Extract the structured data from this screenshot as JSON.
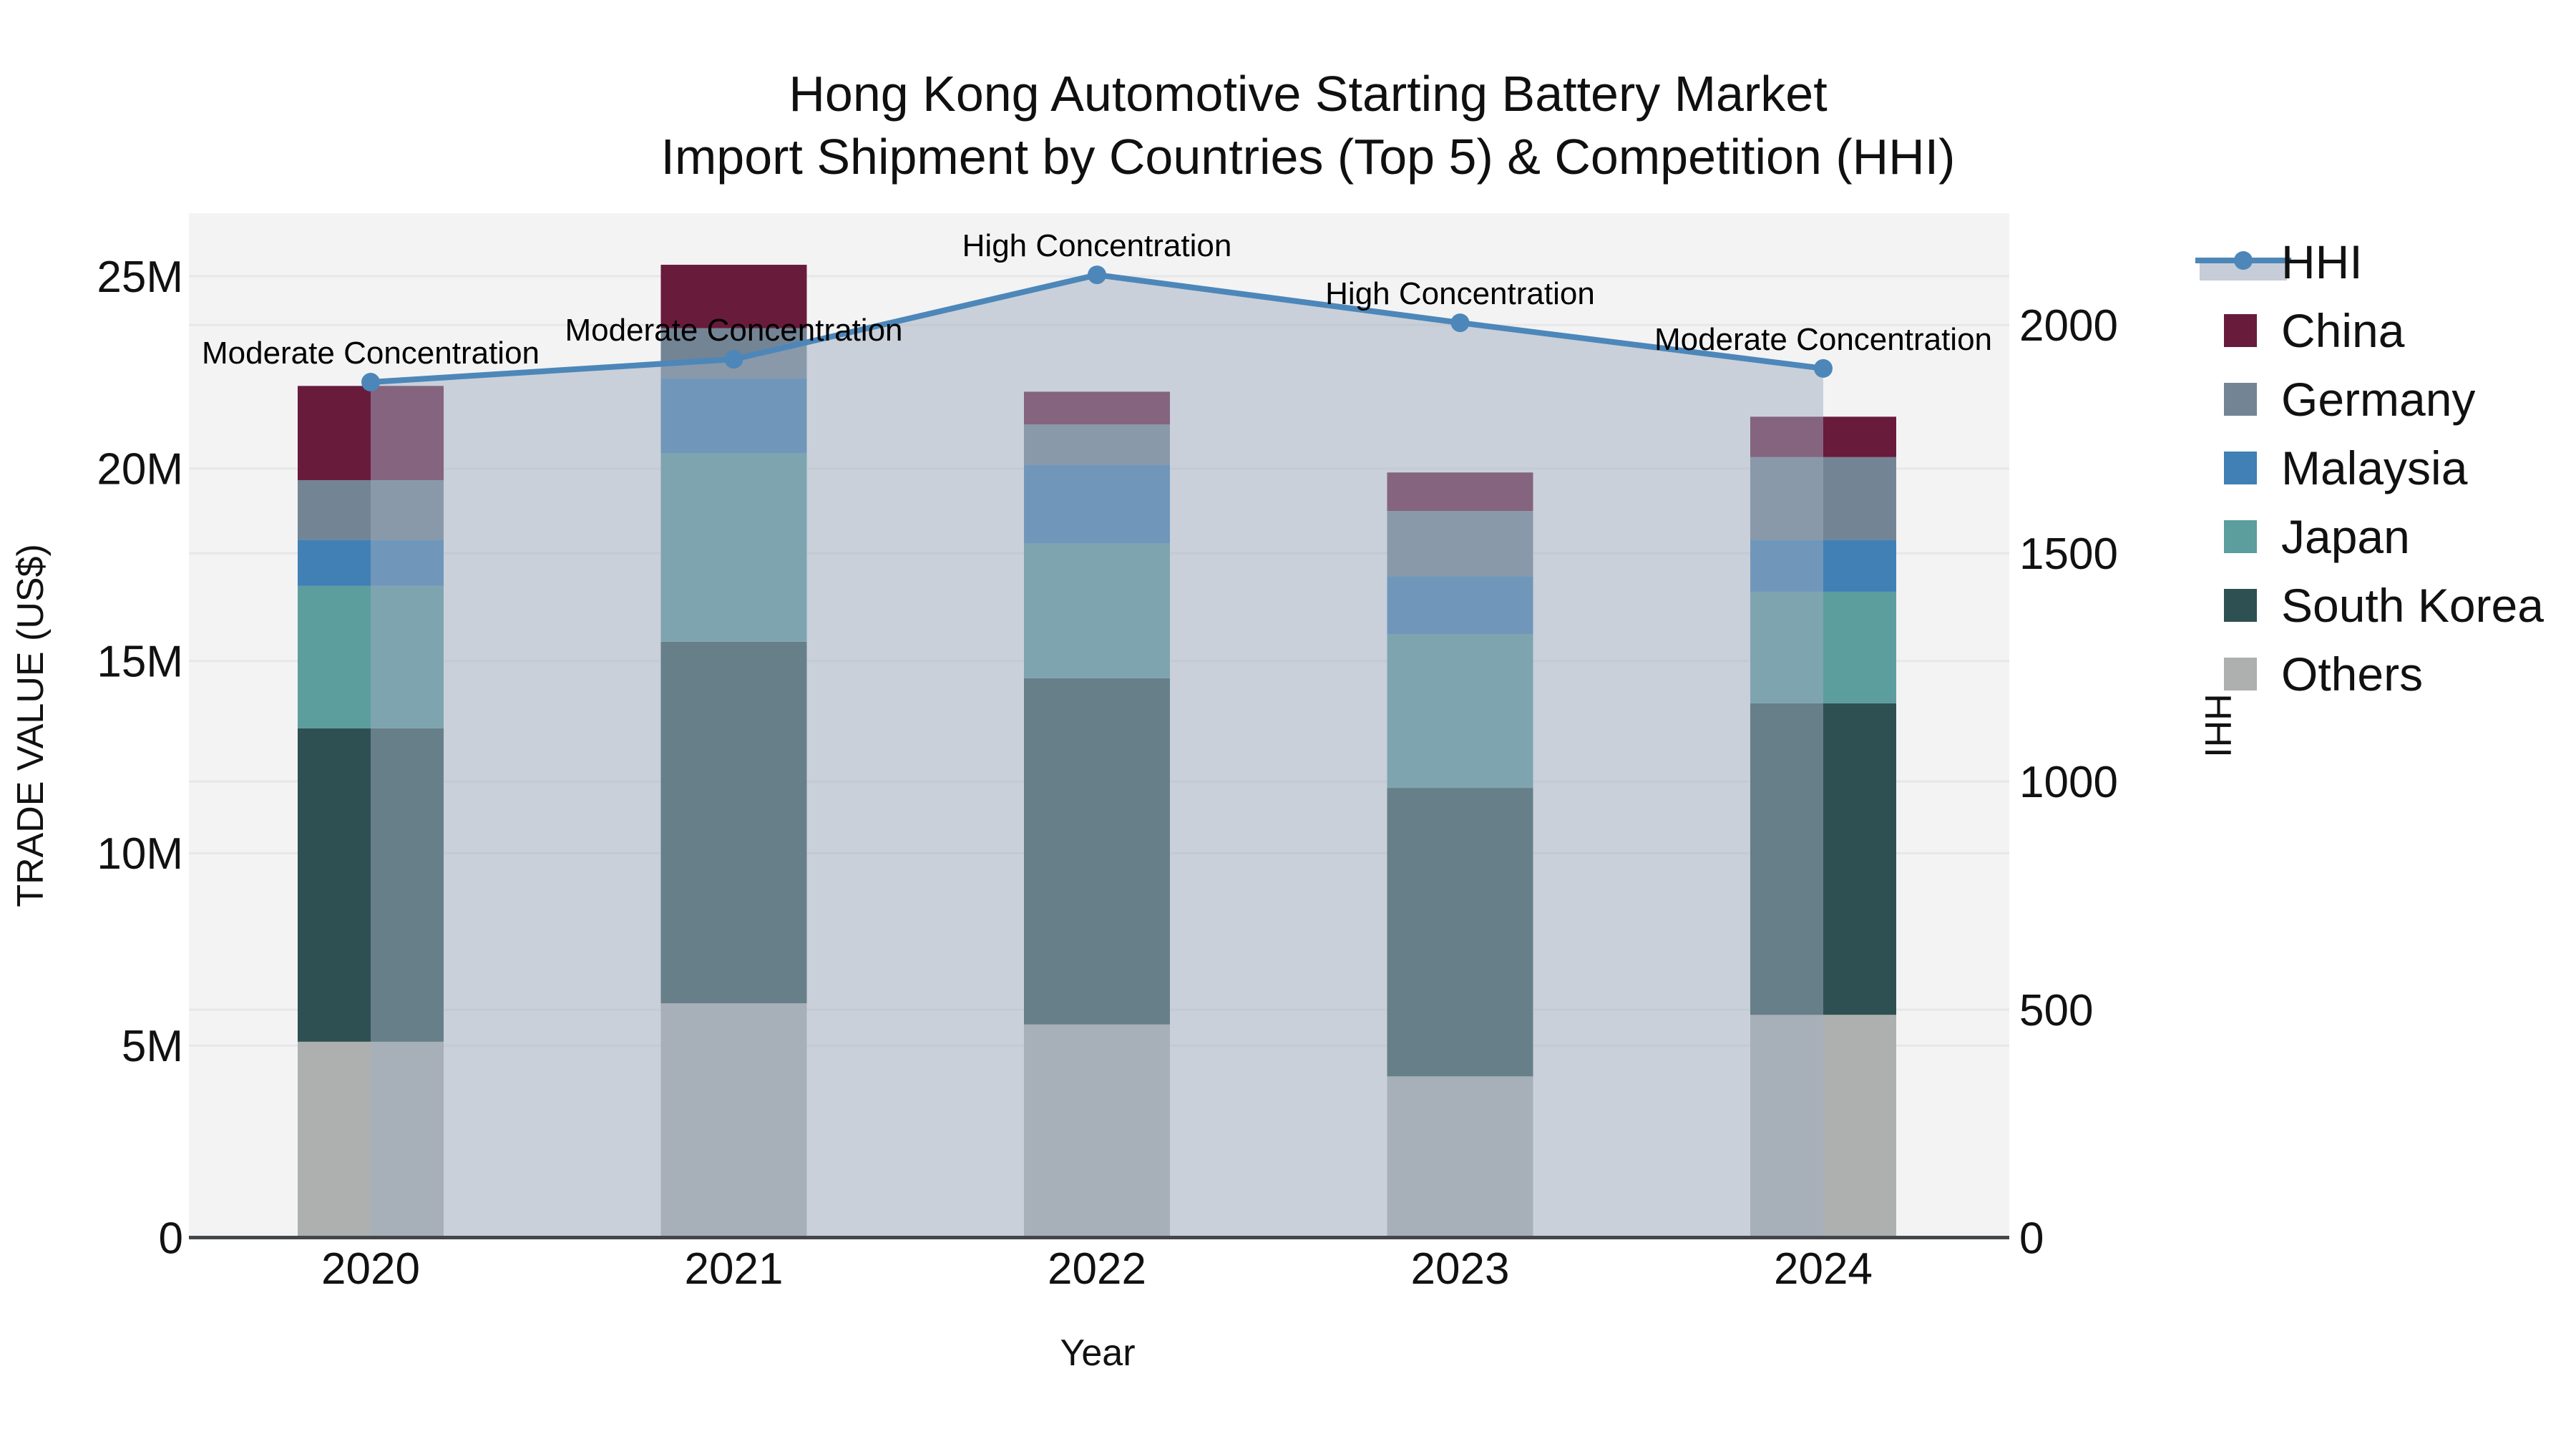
{
  "title": {
    "line1": "Hong Kong Automotive Starting Battery Market",
    "line2": "Import Shipment by Countries (Top 5) & Competition (HHI)"
  },
  "chart_data": {
    "type": "bar+line",
    "title": "Hong Kong Automotive Starting Battery Market Import Shipment by Countries (Top 5) & Competition (HHI)",
    "xlabel": "Year",
    "ylabel": "TRADE VALUE (US$)",
    "y2label": "HHI",
    "units": "millions of US$",
    "categories": [
      "2020",
      "2021",
      "2022",
      "2023",
      "2024"
    ],
    "stack_note": "series listed bottom-to-top as stacked",
    "series": [
      {
        "name": "Others",
        "color": "#aeb0b0",
        "values": [
          5.1,
          6.1,
          5.55,
          4.2,
          5.8
        ]
      },
      {
        "name": "South Korea",
        "color": "#2e5052",
        "values": [
          8.15,
          9.4,
          9.0,
          7.5,
          8.1
        ]
      },
      {
        "name": "Japan",
        "color": "#5c9d9e",
        "values": [
          3.7,
          4.9,
          3.5,
          4.0,
          2.9
        ]
      },
      {
        "name": "Malaysia",
        "color": "#4080b5",
        "values": [
          1.2,
          1.95,
          2.05,
          1.5,
          1.35
        ]
      },
      {
        "name": "Germany",
        "color": "#738495",
        "values": [
          1.55,
          1.3,
          1.05,
          1.7,
          2.15
        ]
      },
      {
        "name": "China",
        "color": "#691b3c",
        "values": [
          2.45,
          1.65,
          0.85,
          1.0,
          1.05
        ]
      }
    ],
    "bar_totals": [
      22.15,
      25.3,
      22.0,
      19.9,
      21.35
    ],
    "line_series": {
      "name": "HHI",
      "axis": "y2",
      "color": "#4d87b9",
      "fill_color": "rgba(160,173,192,0.5)",
      "values": [
        1875,
        1925,
        2110,
        2005,
        1905
      ]
    },
    "annotations": [
      {
        "category": "2020",
        "text": "Moderate Concentration"
      },
      {
        "category": "2021",
        "text": "Moderate Concentration"
      },
      {
        "category": "2022",
        "text": "High Concentration"
      },
      {
        "category": "2023",
        "text": "High Concentration"
      },
      {
        "category": "2024",
        "text": "Moderate Concentration"
      }
    ],
    "yticks": [
      {
        "label": "0",
        "value": 0
      },
      {
        "label": "5M",
        "value": 5
      },
      {
        "label": "10M",
        "value": 10
      },
      {
        "label": "15M",
        "value": 15
      },
      {
        "label": "20M",
        "value": 20
      },
      {
        "label": "25M",
        "value": 25
      }
    ],
    "y2ticks": [
      {
        "label": "0",
        "value": 0
      },
      {
        "label": "500",
        "value": 500
      },
      {
        "label": "1000",
        "value": 1000
      },
      {
        "label": "1500",
        "value": 1500
      },
      {
        "label": "2000",
        "value": 2000
      }
    ],
    "ylim": [
      0,
      26.64
    ],
    "y2lim": [
      0,
      2245
    ],
    "grid": true,
    "legend_position": "right",
    "legend_order": [
      "HHI",
      "China",
      "Germany",
      "Malaysia",
      "Japan",
      "South Korea",
      "Others"
    ]
  },
  "colors": {
    "plot_background": "#f3f3f4",
    "gridline": "#e7e7e9",
    "axis_line": "#44474a",
    "text": "#111111",
    "accent_line": "#4d87b9"
  }
}
